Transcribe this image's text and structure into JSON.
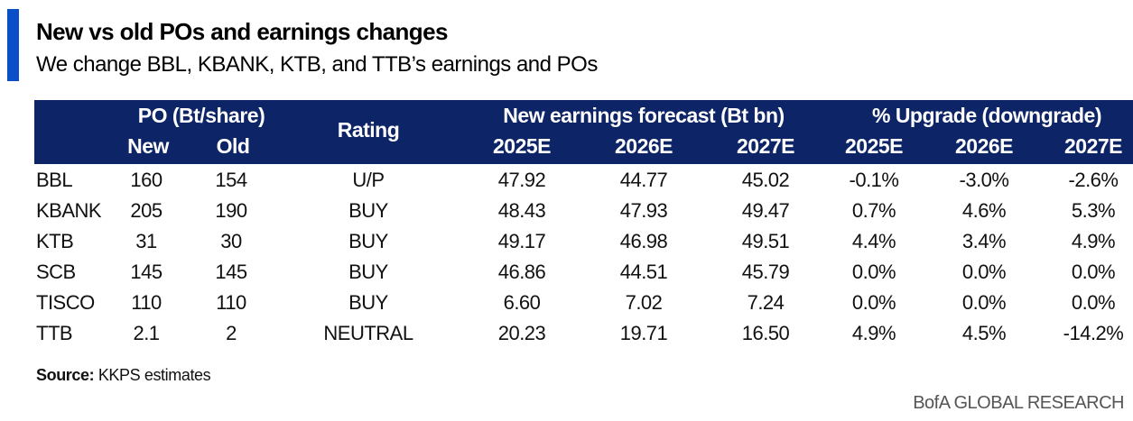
{
  "title": "New vs old POs and earnings changes",
  "subtitle": "We change BBL, KBANK, KTB, and TTB’s earnings and POs",
  "colors": {
    "accent": "#0a4fc8",
    "header_bg": "#0d2467",
    "header_text": "#ffffff"
  },
  "header": {
    "po_group": "PO (Bt/share)",
    "po_new": "New",
    "po_old": "Old",
    "rating": "Rating",
    "earnings_group": "New earnings forecast (Bt bn)",
    "earnings_years": [
      "2025E",
      "2026E",
      "2027E"
    ],
    "upgrade_group": "% Upgrade (downgrade)",
    "upgrade_years": [
      "2025E",
      "2026E",
      "2027E"
    ]
  },
  "rows": [
    {
      "name": "BBL",
      "po_new": "160",
      "po_old": "154",
      "rating": "U/P",
      "e2025": "47.92",
      "e2026": "44.77",
      "e2027": "45.02",
      "u2025": "-0.1%",
      "u2026": "-3.0%",
      "u2027": "-2.6%"
    },
    {
      "name": "KBANK",
      "po_new": "205",
      "po_old": "190",
      "rating": "BUY",
      "e2025": "48.43",
      "e2026": "47.93",
      "e2027": "49.47",
      "u2025": "0.7%",
      "u2026": "4.6%",
      "u2027": "5.3%"
    },
    {
      "name": "KTB",
      "po_new": "31",
      "po_old": "30",
      "rating": "BUY",
      "e2025": "49.17",
      "e2026": "46.98",
      "e2027": "49.51",
      "u2025": "4.4%",
      "u2026": "3.4%",
      "u2027": "4.9%"
    },
    {
      "name": "SCB",
      "po_new": "145",
      "po_old": "145",
      "rating": "BUY",
      "e2025": "46.86",
      "e2026": "44.51",
      "e2027": "45.79",
      "u2025": "0.0%",
      "u2026": "0.0%",
      "u2027": "0.0%"
    },
    {
      "name": "TISCO",
      "po_new": "110",
      "po_old": "110",
      "rating": "BUY",
      "e2025": "6.60",
      "e2026": "7.02",
      "e2027": "7.24",
      "u2025": "0.0%",
      "u2026": "0.0%",
      "u2027": "0.0%"
    },
    {
      "name": "TTB",
      "po_new": "2.1",
      "po_old": "2",
      "rating": "NEUTRAL",
      "e2025": "20.23",
      "e2026": "19.71",
      "e2027": "16.50",
      "u2025": "4.9%",
      "u2026": "4.5%",
      "u2027": "-14.2%"
    }
  ],
  "source_label": "Source:",
  "source_text": " KKPS estimates",
  "brand": "BofA GLOBAL RESEARCH"
}
